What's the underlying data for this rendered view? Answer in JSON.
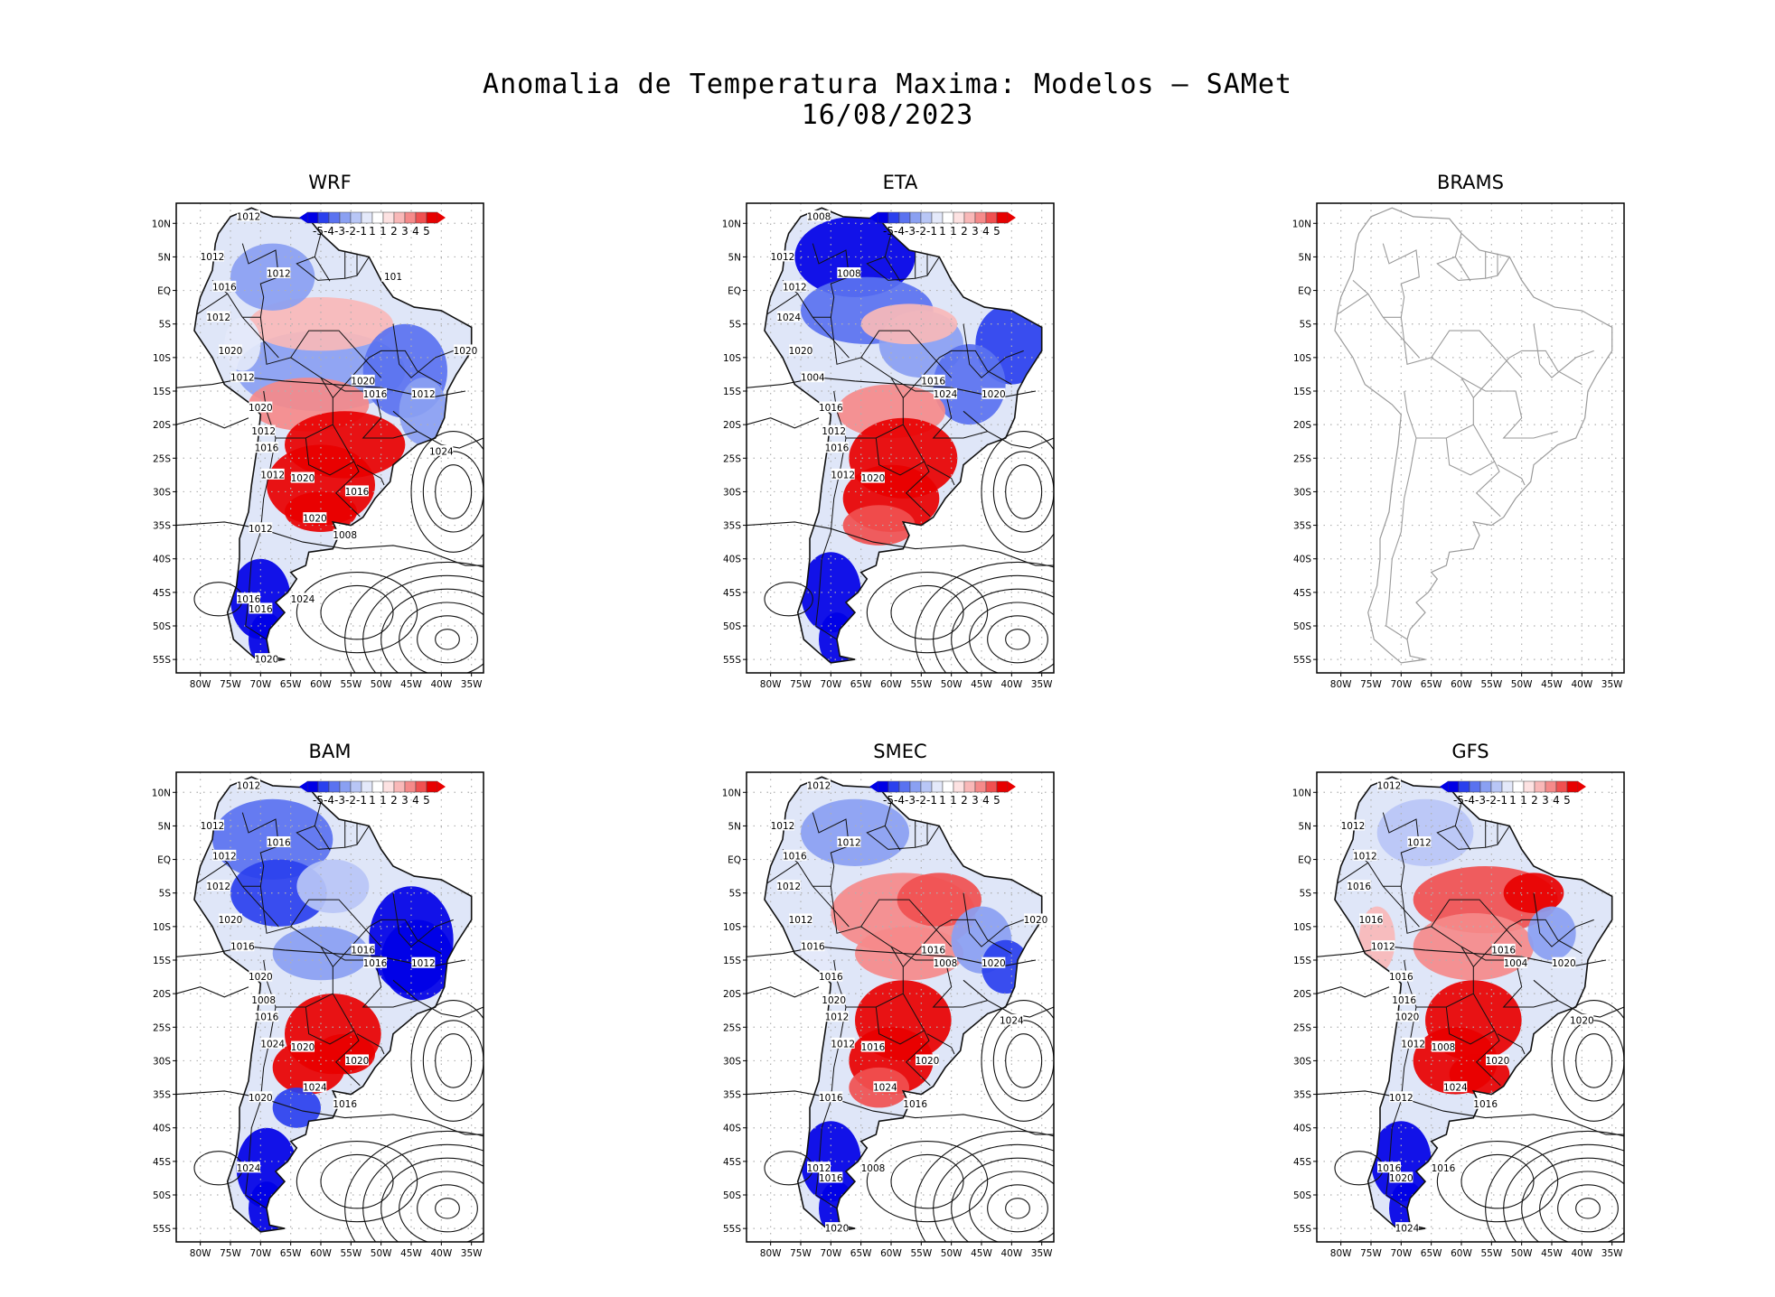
{
  "title": {
    "line1": "Anomalia de Temperatura Maxima: Modelos — SAMet",
    "line2": "16/08/2023"
  },
  "axes": {
    "lat_labels": [
      "10N",
      "5N",
      "EQ",
      "5S",
      "10S",
      "15S",
      "20S",
      "25S",
      "30S",
      "35S",
      "40S",
      "45S",
      "50S",
      "55S"
    ],
    "lon_labels": [
      "80W",
      "75W",
      "70W",
      "65W",
      "60W",
      "55W",
      "50W",
      "45W",
      "40W",
      "35W"
    ]
  },
  "colorbar": {
    "labels": [
      "-5",
      "-4",
      "-3",
      "-2",
      "-1",
      "1",
      "1",
      "2",
      "3",
      "4",
      "5"
    ],
    "colors": [
      "#0000e6",
      "#2a40ee",
      "#5a72f0",
      "#8aa0f2",
      "#b8c6f6",
      "#e4e9fa",
      "#ffffff",
      "#fde2e2",
      "#f9b8b8",
      "#f58a8a",
      "#f05050",
      "#e80000"
    ]
  },
  "panels": [
    {
      "name": "WRF",
      "has_data": true,
      "isobar_labels": [
        "1012",
        "1012",
        "1012",
        "1016",
        "1012",
        "1020",
        "1012",
        "1020",
        "1012",
        "1016",
        "1012",
        "1020",
        "1020",
        "1016",
        "1012",
        "1020",
        "1016",
        "1008",
        "1012",
        "1016",
        "1024",
        "1016",
        "1020",
        "1024",
        "1020",
        "101"
      ]
    },
    {
      "name": "ETA",
      "has_data": true,
      "isobar_labels": [
        "1008",
        "1012",
        "1008",
        "1012",
        "1024",
        "1020",
        "1004",
        "1016",
        "1012",
        "1016",
        "1012",
        "1020",
        "1016",
        "1024",
        "1020"
      ]
    },
    {
      "name": "BRAMS",
      "has_data": false,
      "isobar_labels": []
    },
    {
      "name": "BAM",
      "has_data": true,
      "isobar_labels": [
        "1012",
        "1012",
        "1016",
        "1012",
        "1012",
        "1020",
        "1016",
        "1020",
        "1008",
        "1016",
        "1024",
        "1020",
        "1016",
        "1016",
        "1012",
        "1024",
        "1020",
        "1016",
        "1020",
        "1024"
      ]
    },
    {
      "name": "SMEC",
      "has_data": true,
      "isobar_labels": [
        "1012",
        "1012",
        "1012",
        "1016",
        "1012",
        "1012",
        "1016",
        "1016",
        "1020",
        "1012",
        "1012",
        "1016",
        "1016",
        "1008",
        "1020",
        "1024",
        "1020",
        "1016",
        "1016",
        "1012",
        "1008",
        "1016",
        "1020",
        "1024",
        "1020"
      ]
    },
    {
      "name": "GFS",
      "has_data": true,
      "isobar_labels": [
        "1012",
        "1012",
        "1012",
        "1012",
        "1016",
        "1016",
        "1012",
        "1016",
        "1016",
        "1020",
        "1012",
        "1008",
        "1016",
        "1004",
        "1020",
        "1024",
        "1020",
        "1016",
        "1012",
        "1016",
        "1016",
        "1020",
        "1024",
        "1020"
      ]
    }
  ]
}
